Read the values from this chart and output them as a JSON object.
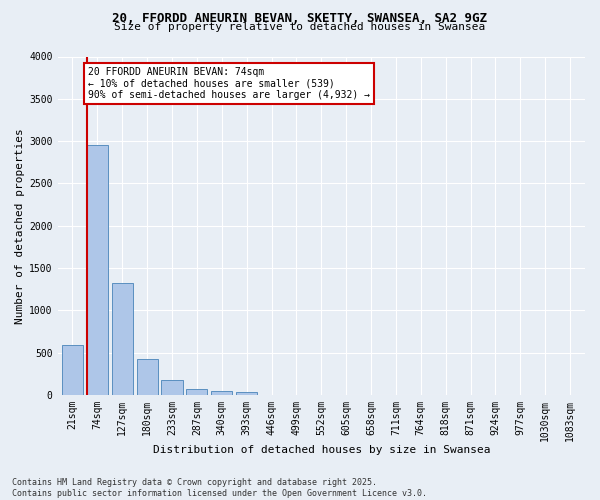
{
  "title_line1": "20, FFORDD ANEURIN BEVAN, SKETTY, SWANSEA, SA2 9GZ",
  "title_line2": "Size of property relative to detached houses in Swansea",
  "xlabel": "Distribution of detached houses by size in Swansea",
  "ylabel": "Number of detached properties",
  "bar_labels": [
    "21sqm",
    "74sqm",
    "127sqm",
    "180sqm",
    "233sqm",
    "287sqm",
    "340sqm",
    "393sqm",
    "446sqm",
    "499sqm",
    "552sqm",
    "605sqm",
    "658sqm",
    "711sqm",
    "764sqm",
    "818sqm",
    "871sqm",
    "924sqm",
    "977sqm",
    "1030sqm",
    "1083sqm"
  ],
  "bar_values": [
    590,
    2950,
    1320,
    420,
    175,
    65,
    40,
    35,
    0,
    0,
    0,
    0,
    0,
    0,
    0,
    0,
    0,
    0,
    0,
    0,
    0
  ],
  "bar_color": "#aec6e8",
  "bar_edge_color": "#5a8fc0",
  "highlight_color": "#cc0000",
  "annotation_text": "20 FFORDD ANEURIN BEVAN: 74sqm\n← 10% of detached houses are smaller (539)\n90% of semi-detached houses are larger (4,932) →",
  "annotation_box_color": "#ffffff",
  "annotation_edge_color": "#cc0000",
  "ylim": [
    0,
    4000
  ],
  "yticks": [
    0,
    500,
    1000,
    1500,
    2000,
    2500,
    3000,
    3500,
    4000
  ],
  "bg_color": "#e8eef5",
  "plot_bg_color": "#e8eef5",
  "grid_color": "#ffffff",
  "footer_line1": "Contains HM Land Registry data © Crown copyright and database right 2025.",
  "footer_line2": "Contains public sector information licensed under the Open Government Licence v3.0.",
  "annotation_fontsize": 7,
  "footer_fontsize": 6,
  "title1_fontsize": 9,
  "title2_fontsize": 8,
  "xlabel_fontsize": 8,
  "ylabel_fontsize": 8,
  "tick_fontsize": 7,
  "bar_width": 0.85
}
